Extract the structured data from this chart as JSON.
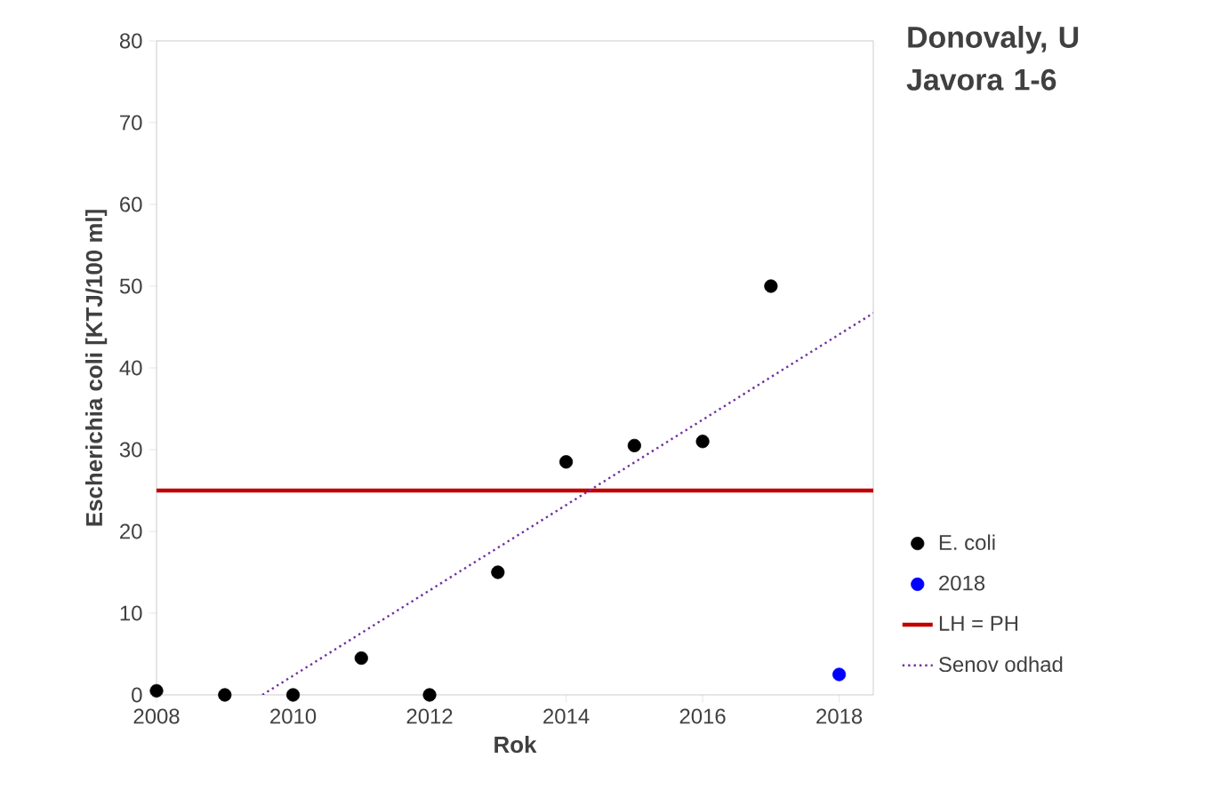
{
  "chart_data": {
    "type": "scatter",
    "title": "Donovaly, U Javora 1-6",
    "xlabel": "Rok",
    "ylabel": "Escherichia coli [KTJ/100 ml]",
    "series": [
      {
        "name": "E. coli",
        "color": "#000000",
        "x": [
          2008,
          2009,
          2010,
          2011,
          2012,
          2013,
          2014,
          2015,
          2016,
          2017
        ],
        "values": [
          0.5,
          0,
          0,
          4.5,
          0,
          15,
          28.5,
          30.5,
          31,
          50
        ]
      },
      {
        "name": "2018",
        "color": "#0000ff",
        "x": [
          2018
        ],
        "values": [
          2.5
        ]
      },
      {
        "name": "Senov odhad",
        "type": "line",
        "color": "#7030a0",
        "line_style": "dotted",
        "marker": "none",
        "x": [
          2009.55,
          2018.5
        ],
        "values": [
          0,
          46.7
        ]
      }
    ],
    "ref_lines": [
      {
        "axis": "y",
        "value": 25,
        "label": "LH = PH",
        "color": "#c00000"
      }
    ],
    "xlim": [
      2008,
      2018.5
    ],
    "ylim": [
      0,
      80
    ],
    "xticks": [
      2008,
      2010,
      2012,
      2014,
      2016,
      2018
    ],
    "yticks": [
      0,
      10,
      20,
      30,
      40,
      50,
      60,
      70,
      80
    ],
    "marker": "circle",
    "grid": false,
    "legend": "right"
  }
}
